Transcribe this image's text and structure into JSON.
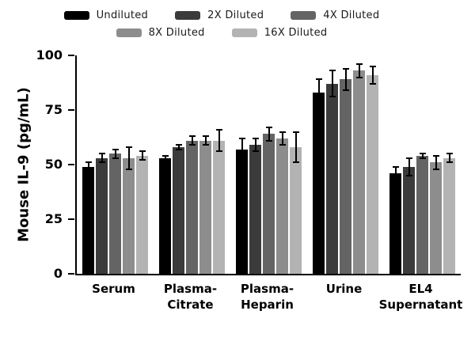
{
  "chart_data": {
    "type": "bar",
    "title": "",
    "xlabel": "",
    "ylabel": "Mouse IL-9 (pg/mL)",
    "ylim": [
      0,
      100
    ],
    "yticks": [
      0,
      25,
      50,
      75,
      100
    ],
    "grid": false,
    "legend_position": "top",
    "categories": [
      "Serum",
      "Plasma-\nCitrate",
      "Plasma-\nHeparin",
      "Urine",
      "EL4\nSupernatant"
    ],
    "legend_rows": [
      [
        0,
        1,
        2
      ],
      [
        3,
        4
      ]
    ],
    "series": [
      {
        "name": "Undiluted",
        "color": "#000000",
        "values": [
          49,
          53,
          57,
          83,
          46
        ],
        "errors": [
          2,
          1,
          5,
          6,
          3
        ]
      },
      {
        "name": "2X Diluted",
        "color": "#3b3b3b",
        "values": [
          53,
          58,
          59,
          87,
          49
        ],
        "errors": [
          2,
          1,
          3,
          6,
          4
        ]
      },
      {
        "name": "4X Diluted",
        "color": "#646464",
        "values": [
          55,
          61,
          64,
          89,
          54
        ],
        "errors": [
          2,
          2,
          3,
          5,
          1
        ]
      },
      {
        "name": "8X Diluted",
        "color": "#8d8d8d",
        "values": [
          53,
          61,
          62,
          93,
          51
        ],
        "errors": [
          5,
          2,
          3,
          3,
          3
        ]
      },
      {
        "name": "16X Diluted",
        "color": "#b3b3b3",
        "values": [
          54,
          61,
          58,
          91,
          53
        ],
        "errors": [
          2,
          5,
          7,
          4,
          2
        ]
      }
    ],
    "error_bar_color": "#000000"
  }
}
